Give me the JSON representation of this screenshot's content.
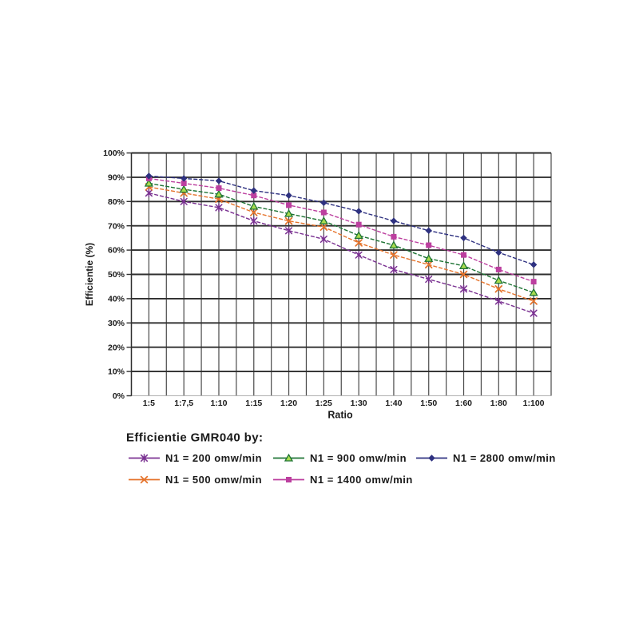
{
  "chart_data": {
    "type": "line",
    "title": "",
    "xlabel": "Ratio",
    "ylabel": "Efficientie (%)",
    "legend_title": "Efficientie GMR040 by:",
    "categories": [
      "1:5",
      "1:7,5",
      "1:10",
      "1:15",
      "1:20",
      "1:25",
      "1:30",
      "1:40",
      "1:50",
      "1:60",
      "1:80",
      "1:100"
    ],
    "y_tick_labels": [
      "0%",
      "10%",
      "20%",
      "30%",
      "40%",
      "50%",
      "60%",
      "70%",
      "80%",
      "90%",
      "100%"
    ],
    "y_tick_values": [
      0,
      10,
      20,
      30,
      40,
      50,
      60,
      70,
      80,
      90,
      100
    ],
    "ylim": [
      0,
      100
    ],
    "grid": "both",
    "legend_position": "bottom",
    "line_style": "dashed",
    "series": [
      {
        "name": "N1 = 200 omw/min",
        "color": "#7a3191",
        "marker": "star",
        "values": [
          83.5,
          80,
          77.5,
          72,
          68,
          64.5,
          58,
          52,
          48,
          44,
          39,
          34
        ]
      },
      {
        "name": "N1 = 500 omw/min",
        "color": "#e5732b",
        "marker": "x",
        "values": [
          86,
          83.5,
          81,
          75.5,
          72,
          69.5,
          63,
          58,
          54,
          50,
          44,
          39
        ]
      },
      {
        "name": "N1 = 900 omw/min",
        "color": "#1e7434",
        "marker": "triangle",
        "marker_fill": "#a8dc4e",
        "values": [
          87.5,
          85,
          83,
          78,
          75,
          72,
          66,
          62,
          56.5,
          53.5,
          47.5,
          42.5
        ]
      },
      {
        "name": "N1 = 1400 omw/min",
        "color": "#bc3f9f",
        "marker": "square",
        "values": [
          89.5,
          87.5,
          85.5,
          82.5,
          78.5,
          75.5,
          70.5,
          65.5,
          62,
          58,
          52,
          47
        ]
      },
      {
        "name": "N1 = 2800 omw/min",
        "color": "#2e3180",
        "marker": "diamond",
        "values": [
          90.5,
          89.5,
          88.5,
          84.5,
          82.5,
          79.5,
          76,
          72,
          68,
          65,
          59,
          54
        ]
      }
    ],
    "legend_rows": [
      [
        0,
        2,
        4
      ],
      [
        1,
        3
      ]
    ]
  },
  "colors": {
    "grid_horizontal": "#2e2e2e",
    "grid_vertical": "#4a4a4a",
    "axis_bottom": "#b0b0b0",
    "text": "#1a1a1a",
    "background": "#ffffff"
  }
}
